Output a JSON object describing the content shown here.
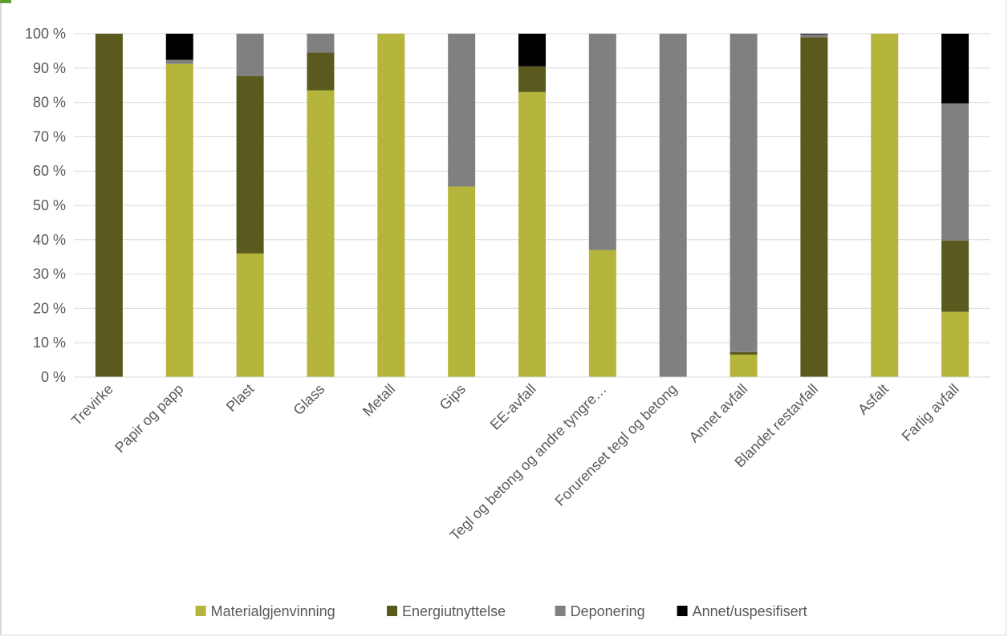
{
  "chart_data": {
    "type": "bar",
    "stacked": true,
    "percent": true,
    "title": "",
    "xlabel": "",
    "ylabel": "",
    "ylim": [
      0,
      100
    ],
    "yticks": [
      "0 %",
      "10 %",
      "20 %",
      "30 %",
      "40 %",
      "50 %",
      "60 %",
      "70 %",
      "80 %",
      "90 %",
      "100 %"
    ],
    "grid": true,
    "legend_position": "bottom",
    "categories": [
      "Trevirke",
      "Papir og papp",
      "Plast",
      "Glass",
      "Metall",
      "Gips",
      "EE-avfall",
      "Tegl og betong og andre tyngre…",
      "Forurenset tegl og betong",
      "Annet avfall",
      "Blandet restavfall",
      "Asfalt",
      "Farlig avfall"
    ],
    "series": [
      {
        "name": "Materialgjenvinning",
        "color": "#b5b43b",
        "values": [
          0,
          91.2,
          36,
          83.5,
          100,
          55.5,
          83,
          37,
          0,
          6.5,
          0,
          100,
          19
        ]
      },
      {
        "name": "Energiutnyttelse",
        "color": "#5a5a1e",
        "values": [
          100,
          0,
          51.7,
          11,
          0,
          0,
          7.5,
          0,
          0,
          0.8,
          99,
          0,
          20.8
        ]
      },
      {
        "name": "Deponering",
        "color": "#808080",
        "values": [
          0,
          1.2,
          12.3,
          5.5,
          0,
          44.5,
          0,
          63,
          100,
          92.7,
          0.8,
          0,
          39.9
        ]
      },
      {
        "name": "Annet/uspesifisert",
        "color": "#000000",
        "values": [
          0,
          7.6,
          0,
          0,
          0,
          0,
          9.5,
          0,
          0,
          0,
          0.2,
          0,
          20.3
        ]
      }
    ]
  }
}
